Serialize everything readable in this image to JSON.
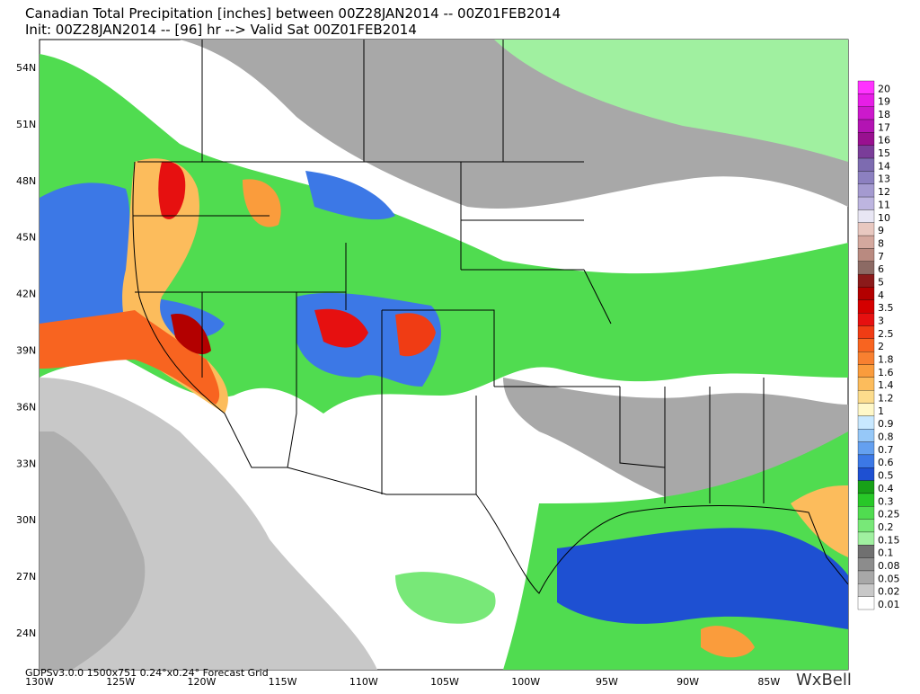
{
  "header": {
    "title": "Canadian Total Precipitation [inches] between 00Z28JAN2014 -- 00Z01FEB2014",
    "subtitle": "Init: 00Z28JAN2014 -- [96] hr --> Valid Sat 00Z01FEB2014"
  },
  "map": {
    "lat_labels": [
      "54N",
      "51N",
      "48N",
      "45N",
      "42N",
      "39N",
      "36N",
      "33N",
      "30N",
      "27N",
      "24N"
    ],
    "lon_labels": [
      "130W",
      "125W",
      "120W",
      "115W",
      "110W",
      "105W",
      "100W",
      "95W",
      "90W",
      "85W"
    ],
    "footer": "GDPSv3.0.0 1500x751 0.24°x0.24° Forecast Grid",
    "logo": "WxBell"
  },
  "legend": {
    "entries": [
      {
        "label": "20",
        "color": "#ff33ff"
      },
      {
        "label": "19",
        "color": "#e61ee6"
      },
      {
        "label": "18",
        "color": "#cc19cc"
      },
      {
        "label": "17",
        "color": "#b314b3"
      },
      {
        "label": "16",
        "color": "#991090"
      },
      {
        "label": "15",
        "color": "#7a3d99"
      },
      {
        "label": "14",
        "color": "#7d6bb0"
      },
      {
        "label": "13",
        "color": "#8c80c0"
      },
      {
        "label": "12",
        "color": "#a49ad0"
      },
      {
        "label": "11",
        "color": "#bdb5e0"
      },
      {
        "label": "10",
        "color": "#e8e6f4"
      },
      {
        "label": "9",
        "color": "#e8c8c0"
      },
      {
        "label": "8",
        "color": "#d4a89e"
      },
      {
        "label": "7",
        "color": "#b98a80"
      },
      {
        "label": "6",
        "color": "#8c6a64"
      },
      {
        "label": "5",
        "color": "#8b1a1a"
      },
      {
        "label": "4",
        "color": "#b30000"
      },
      {
        "label": "3.5",
        "color": "#d40000"
      },
      {
        "label": "3",
        "color": "#e61010"
      },
      {
        "label": "2.5",
        "color": "#f03c14"
      },
      {
        "label": "2",
        "color": "#f86420"
      },
      {
        "label": "1.8",
        "color": "#f88030"
      },
      {
        "label": "1.6",
        "color": "#fa9c3c"
      },
      {
        "label": "1.4",
        "color": "#fcbc5c"
      },
      {
        "label": "1.2",
        "color": "#fcdc8c"
      },
      {
        "label": "1",
        "color": "#fff8c8"
      },
      {
        "label": "0.9",
        "color": "#c8e8ff"
      },
      {
        "label": "0.8",
        "color": "#96c8f8"
      },
      {
        "label": "0.7",
        "color": "#64a0f0"
      },
      {
        "label": "0.6",
        "color": "#3c78e6"
      },
      {
        "label": "0.5",
        "color": "#1e50d2"
      },
      {
        "label": "0.4",
        "color": "#18a018"
      },
      {
        "label": "0.3",
        "color": "#28c828"
      },
      {
        "label": "0.25",
        "color": "#50dc50"
      },
      {
        "label": "0.2",
        "color": "#78e878"
      },
      {
        "label": "0.15",
        "color": "#a0f0a0"
      },
      {
        "label": "0.1",
        "color": "#707070"
      },
      {
        "label": "0.08",
        "color": "#8c8c8c"
      },
      {
        "label": "0.05",
        "color": "#a8a8a8"
      },
      {
        "label": "0.02",
        "color": "#c8c8c8"
      },
      {
        "label": "0.01",
        "color": "#ffffff"
      }
    ]
  }
}
